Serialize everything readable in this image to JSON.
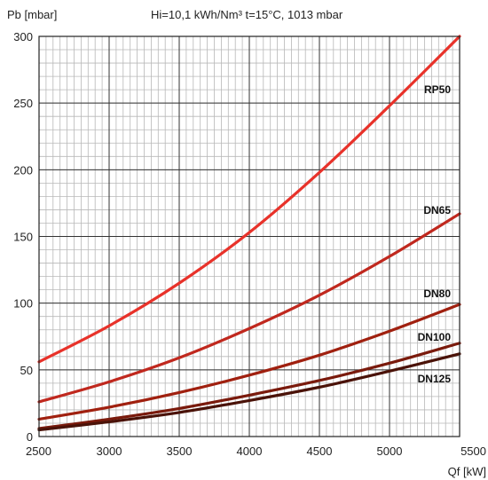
{
  "chart_data": {
    "type": "line",
    "subtitle": "Hi=10,1 kWh/Nm³  t=15°C, 1013 mbar",
    "ylabel": "Pb [mbar]",
    "xlabel": "Qf [kW]",
    "xlim": [
      2500,
      5500
    ],
    "ylim": [
      0,
      300
    ],
    "x_ticks": [
      2500,
      3000,
      3500,
      4000,
      4500,
      5000,
      5500
    ],
    "y_ticks": [
      0,
      50,
      100,
      150,
      200,
      250,
      300
    ],
    "grid": true,
    "series": [
      {
        "name": "RP50",
        "color": "#e8322a",
        "x": [
          2500,
          3000,
          3500,
          4000,
          4500,
          5000,
          5500
        ],
        "y": [
          56,
          83,
          115,
          153,
          198,
          248,
          300
        ]
      },
      {
        "name": "DN65",
        "color": "#c0281e",
        "x": [
          2500,
          3000,
          3500,
          4000,
          4500,
          5000,
          5500
        ],
        "y": [
          26,
          41,
          59,
          81,
          106,
          135,
          167
        ]
      },
      {
        "name": "DN80",
        "color": "#a0200f",
        "x": [
          2500,
          3000,
          3500,
          4000,
          4500,
          5000,
          5500
        ],
        "y": [
          13,
          22,
          33,
          46,
          61,
          79,
          99
        ]
      },
      {
        "name": "DN100",
        "color": "#7a1a0c",
        "x": [
          2500,
          3000,
          3500,
          4000,
          4500,
          5000,
          5500
        ],
        "y": [
          6,
          13,
          21,
          31,
          42,
          55,
          70
        ]
      },
      {
        "name": "DN125",
        "color": "#4a1208",
        "x": [
          2500,
          3000,
          3500,
          4000,
          4500,
          5000,
          5500
        ],
        "y": [
          5,
          11,
          18,
          27,
          37,
          49,
          62
        ]
      }
    ]
  }
}
